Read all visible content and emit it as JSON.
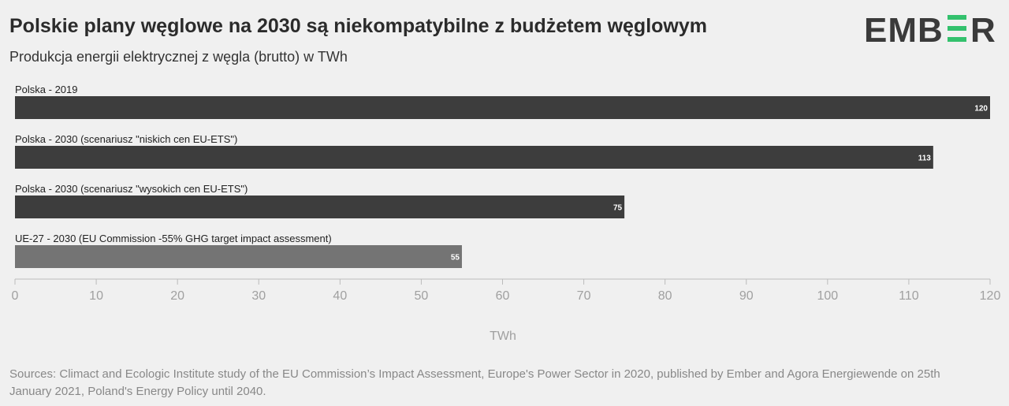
{
  "header": {
    "title": "Polskie plany węglowe na 2030 są niekompatybilne z budżetem węglowym",
    "subtitle": "Produkcja energii elektrycznej z węgla (brutto) w TWh"
  },
  "logo": {
    "text": "EMBER",
    "text_color": "#3a3a3a",
    "accent_color": "#33c16d"
  },
  "chart_data": {
    "type": "bar",
    "orientation": "horizontal",
    "categories": [
      "Polska - 2019",
      "Polska - 2030 (scenariusz \"niskich cen EU-ETS\")",
      "Polska - 2030 (scenariusz \"wysokich cen EU-ETS\")",
      "UE-27 - 2030 (EU Commission -55% GHG target impact assessment)"
    ],
    "values": [
      120,
      113,
      75,
      55
    ],
    "value_labels": [
      "120",
      "113",
      "75",
      "55"
    ],
    "colors": [
      "#3d3d3d",
      "#3d3d3d",
      "#3d3d3d",
      "#747474"
    ],
    "xlim": [
      0,
      120
    ],
    "xticks": [
      0,
      10,
      20,
      30,
      40,
      50,
      60,
      70,
      80,
      90,
      100,
      110,
      120
    ],
    "xtick_labels": [
      "0",
      "10",
      "20",
      "30",
      "40",
      "50",
      "60",
      "70",
      "80",
      "90",
      "100",
      "110",
      "120"
    ],
    "xlabel": "TWh",
    "grid": false
  },
  "footer": {
    "source": "Sources: Climact and Ecologic Institute study of the EU Commission’s Impact Assessment, Europe's Power Sector in 2020, published by Ember and Agora Energiewende on 25th January 2021, Poland's Energy Policy until 2040."
  }
}
